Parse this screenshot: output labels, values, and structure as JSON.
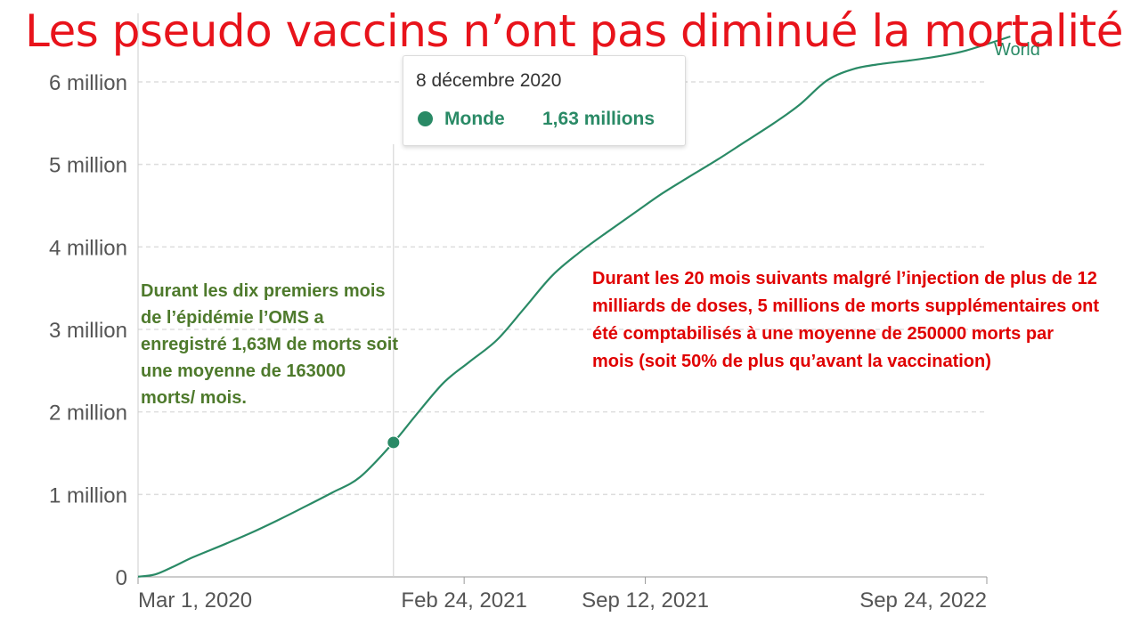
{
  "title": "Les pseudo vaccins n’ont pas diminué la mortalité",
  "tooltip": {
    "date": "8 décembre 2020",
    "series_name": "Monde",
    "value_text": "1,63 millions"
  },
  "annotation_left": "Durant les dix premiers mois de l’épidémie l’OMS a enregistré 1,63M de morts soit une moyenne de 163000 morts/ mois.",
  "annotation_right": "Durant les 20 mois suivants malgré l’injection de plus de  12 milliards de doses, 5 millions de morts supplémentaires ont été comptabilisés à une moyenne de 250000 morts par mois (soit 50% de plus qu’avant la vaccination)",
  "colors": {
    "line": "#2a8a66",
    "title": "#e8131b",
    "annotation_left": "#4e7a2c",
    "annotation_right": "#e00000"
  },
  "chart_data": {
    "type": "line",
    "title": "Les pseudo vaccins n’ont pas diminué la mortalité",
    "xlabel": "",
    "ylabel": "",
    "x_ticks": [
      "Mar 1, 2020",
      "Feb 24, 2021",
      "Sep 12, 2021",
      "Sep 24, 2022"
    ],
    "x_tick_dates": [
      "2020-03-01",
      "2021-02-24",
      "2021-09-12",
      "2022-09-24"
    ],
    "y_ticks": [
      0,
      1000000,
      2000000,
      3000000,
      4000000,
      5000000,
      6000000
    ],
    "y_tick_labels": [
      "0",
      "1 million",
      "2 million",
      "3 million",
      "4 million",
      "5 million",
      "6 million"
    ],
    "xlim": [
      "2020-03-01",
      "2022-10-20"
    ],
    "ylim": [
      0,
      6000000
    ],
    "grid": true,
    "highlight": {
      "x": "2020-12-08",
      "y": 1630000
    },
    "series": [
      {
        "name": "World",
        "x": [
          "2020-03-01",
          "2020-03-20",
          "2020-04-10",
          "2020-05-01",
          "2020-06-01",
          "2020-07-01",
          "2020-08-01",
          "2020-09-01",
          "2020-10-01",
          "2020-11-01",
          "2020-12-08",
          "2021-01-01",
          "2021-02-01",
          "2021-03-01",
          "2021-04-01",
          "2021-05-01",
          "2021-06-01",
          "2021-07-01",
          "2021-08-01",
          "2021-09-01",
          "2021-10-01",
          "2021-11-01",
          "2021-12-01",
          "2022-01-01",
          "2022-02-01",
          "2022-03-01",
          "2022-04-01",
          "2022-05-01",
          "2022-06-01",
          "2022-07-01",
          "2022-08-01",
          "2022-09-01",
          "2022-10-20"
        ],
        "y": [
          3000,
          30000,
          130000,
          240000,
          380000,
          520000,
          680000,
          850000,
          1020000,
          1210000,
          1630000,
          1950000,
          2350000,
          2600000,
          2870000,
          3250000,
          3650000,
          3930000,
          4180000,
          4420000,
          4650000,
          4860000,
          5060000,
          5280000,
          5500000,
          5720000,
          6020000,
          6160000,
          6220000,
          6260000,
          6310000,
          6380000,
          6550000
        ]
      }
    ]
  }
}
